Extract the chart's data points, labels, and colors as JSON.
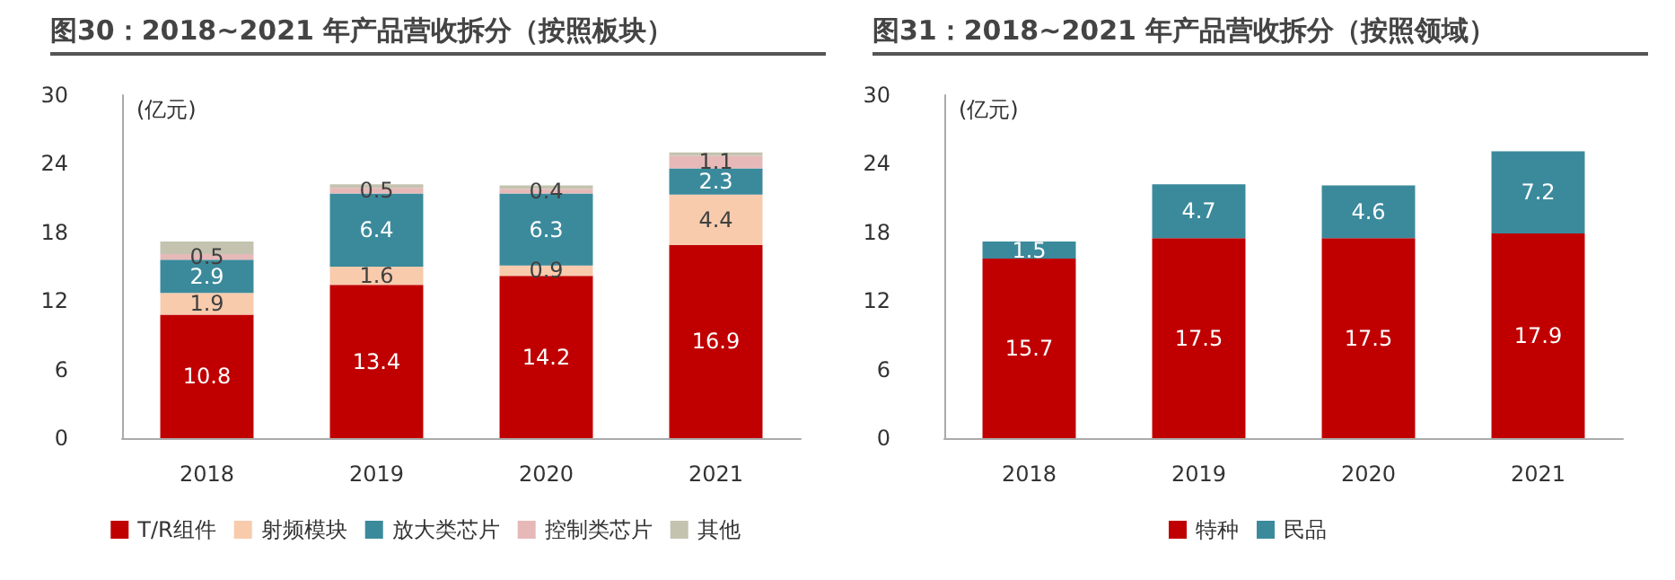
{
  "chart_data": [
    {
      "type": "bar",
      "title": "图30：2018~2021 年产品营收拆分（按照板块）",
      "ylabel": "(亿元)",
      "categories": [
        "2018",
        "2019",
        "2020",
        "2021"
      ],
      "stacked": true,
      "ylim": [
        0,
        30
      ],
      "yticks": [
        0,
        6,
        12,
        18,
        24,
        30
      ],
      "grid": false,
      "legend": "bottom",
      "series": [
        {
          "name": "T/R组件",
          "color": "#c00000",
          "values": [
            10.8,
            13.4,
            14.2,
            16.9
          ],
          "value_labels": [
            "10.8",
            "13.4",
            "14.2",
            "16.9"
          ]
        },
        {
          "name": "射频模块",
          "color": "#f8cbad",
          "values": [
            1.9,
            1.6,
            0.9,
            4.4
          ],
          "value_labels": [
            "1.9",
            "1.6",
            "0.9",
            "4.4"
          ]
        },
        {
          "name": "放大类芯片",
          "color": "#3b8a9c",
          "values": [
            2.9,
            6.4,
            6.3,
            2.3
          ],
          "value_labels": [
            "2.9",
            "6.4",
            "6.3",
            "2.3"
          ]
        },
        {
          "name": "控制类芯片",
          "color": "#e6b9b8",
          "values": [
            0.5,
            0.5,
            0.4,
            1.1
          ],
          "value_labels": [
            "0.5",
            "0.5",
            "0.4",
            "1.1"
          ]
        },
        {
          "name": "其他",
          "color": "#c4c3b0",
          "values": [
            1.1,
            0.3,
            0.3,
            0.3
          ],
          "value_labels": [
            null,
            null,
            null,
            null
          ]
        }
      ]
    },
    {
      "type": "bar",
      "title": "图31：2018~2021 年产品营收拆分（按照领域）",
      "ylabel": "(亿元)",
      "categories": [
        "2018",
        "2019",
        "2020",
        "2021"
      ],
      "stacked": true,
      "ylim": [
        0,
        30
      ],
      "yticks": [
        0,
        6,
        12,
        18,
        24,
        30
      ],
      "grid": false,
      "legend": "bottom",
      "data_labels": true,
      "series": [
        {
          "name": "特种",
          "color": "#c00000",
          "values": [
            15.7,
            17.5,
            17.5,
            17.9
          ]
        },
        {
          "name": "民品",
          "color": "#3b8a9c",
          "values": [
            1.5,
            4.7,
            4.6,
            7.2
          ]
        }
      ]
    }
  ]
}
